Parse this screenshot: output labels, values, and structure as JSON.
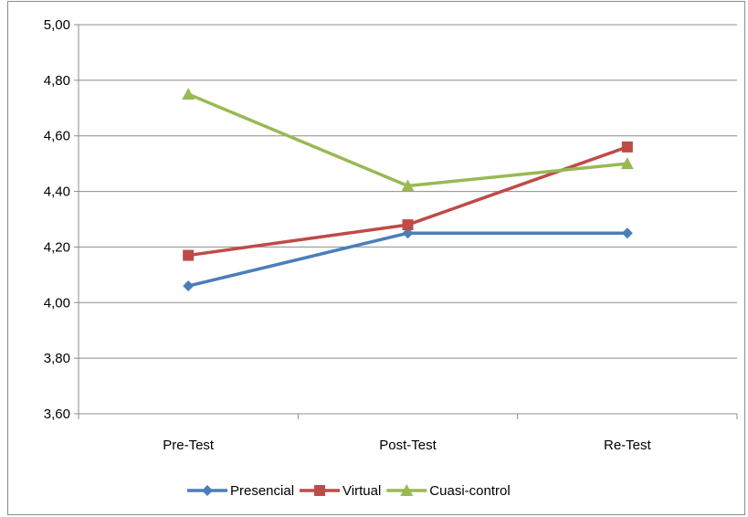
{
  "chart_data": {
    "type": "line",
    "title": "",
    "xlabel": "",
    "ylabel": "",
    "categories": [
      "Pre-Test",
      "Post-Test",
      "Re-Test"
    ],
    "ylim": [
      3.6,
      5.0
    ],
    "yticks": [
      "3,60",
      "3,80",
      "4,00",
      "4,20",
      "4,40",
      "4,60",
      "4,80",
      "5,00"
    ],
    "grid": true,
    "legend_position": "bottom",
    "series": [
      {
        "name": "Presencial",
        "values": [
          4.06,
          4.25,
          4.25
        ],
        "color": "#4a7ebb",
        "marker": "diamond"
      },
      {
        "name": "Virtual",
        "values": [
          4.17,
          4.28,
          4.56
        ],
        "color": "#be4b48",
        "marker": "square"
      },
      {
        "name": "Cuasi-control",
        "values": [
          4.75,
          4.42,
          4.5
        ],
        "color": "#98b954",
        "marker": "triangle"
      }
    ]
  }
}
